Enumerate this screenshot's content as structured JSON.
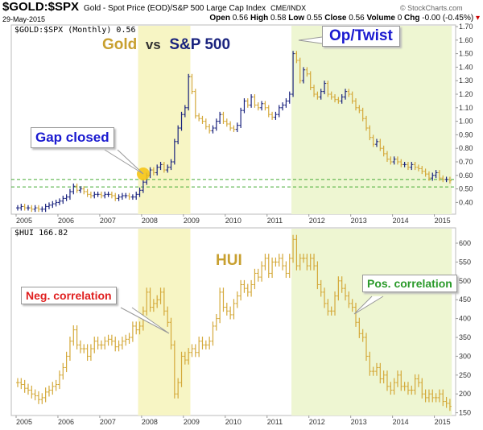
{
  "header": {
    "symbol": "$GOLD:$SPX",
    "description": "Gold - Spot Price (EOD)/S&P 500 Large Cap Index",
    "exchange": "CME/INDX",
    "brand": "© StockCharts.com",
    "date": "29-May-2015",
    "open_label": "Open",
    "open": "0.56",
    "high_label": "High",
    "high": "0.58",
    "low_label": "Low",
    "low": "0.55",
    "close_label": "Close",
    "close": "0.56",
    "volume_label": "Volume",
    "volume": "0",
    "chg_label": "Chg",
    "chg": "-0.00 (-0.45%)"
  },
  "colors": {
    "up": "#1a237e",
    "down": "#d4a93a",
    "shade1": "#f7f5c4",
    "shade2": "#eef6d2",
    "dash": "#44aa33",
    "neg": "#e02020",
    "pos": "#2a9a2a",
    "title_gold": "#c8a030",
    "title_spx": "#1a237e"
  },
  "chart_data": [
    {
      "type": "bar",
      "legend": "$GOLD:$SPX (Monthly) 0.56",
      "title_parts": [
        "Gold",
        "vs",
        "S&P 500"
      ],
      "start": "2005-01",
      "frequency": "monthly",
      "ylim": [
        0.33,
        1.72
      ],
      "yticks": [
        "1.70",
        "1.60",
        "1.50",
        "1.40",
        "1.30",
        "1.20",
        "1.10",
        "1.00",
        "0.90",
        "0.80",
        "0.70",
        "0.60",
        "0.50",
        "0.40"
      ],
      "xticks": [
        "2005",
        "2006",
        "2007",
        "2008",
        "2009",
        "2010",
        "2011",
        "2012",
        "2013",
        "2014",
        "2015"
      ],
      "closes": [
        0.36,
        0.37,
        0.36,
        0.36,
        0.35,
        0.36,
        0.35,
        0.35,
        0.37,
        0.38,
        0.39,
        0.4,
        0.41,
        0.43,
        0.44,
        0.48,
        0.52,
        0.49,
        0.5,
        0.48,
        0.46,
        0.45,
        0.46,
        0.46,
        0.45,
        0.46,
        0.46,
        0.45,
        0.43,
        0.44,
        0.45,
        0.45,
        0.44,
        0.44,
        0.46,
        0.49,
        0.55,
        0.6,
        0.64,
        0.62,
        0.66,
        0.68,
        0.64,
        0.66,
        0.7,
        0.85,
        0.95,
        1.05,
        1.1,
        1.33,
        1.22,
        1.04,
        1.02,
        1.0,
        0.96,
        0.93,
        0.95,
        1.0,
        1.05,
        1.0,
        0.98,
        0.95,
        0.94,
        0.97,
        1.08,
        1.15,
        1.12,
        1.18,
        1.12,
        1.1,
        1.13,
        1.1,
        1.05,
        1.03,
        1.05,
        1.1,
        1.12,
        1.15,
        1.2,
        1.5,
        1.45,
        1.3,
        1.38,
        1.35,
        1.25,
        1.2,
        1.18,
        1.22,
        1.28,
        1.2,
        1.18,
        1.16,
        1.15,
        1.18,
        1.22,
        1.2,
        1.15,
        1.1,
        1.08,
        1.02,
        0.95,
        0.88,
        0.83,
        0.85,
        0.8,
        0.76,
        0.72,
        0.7,
        0.72,
        0.7,
        0.68,
        0.68,
        0.66,
        0.68,
        0.66,
        0.65,
        0.63,
        0.61,
        0.58,
        0.6,
        0.62,
        0.58,
        0.57,
        0.57,
        0.56
      ],
      "hlines": [
        0.57,
        0.515
      ],
      "annotations": {
        "gap": "Gap closed",
        "optwist": "Op/Twist"
      }
    },
    {
      "type": "bar",
      "legend": "$HUI 166.82",
      "title": "HUI",
      "start": "2005-01",
      "frequency": "monthly",
      "ylim": [
        140,
        640
      ],
      "yticks": [
        "600",
        "550",
        "500",
        "450",
        "400",
        "350",
        "300",
        "250",
        "200",
        "150"
      ],
      "xticks": [
        "2005",
        "2006",
        "2007",
        "2008",
        "2009",
        "2010",
        "2011",
        "2012",
        "2013",
        "2014",
        "2015"
      ],
      "closes": [
        230,
        225,
        215,
        210,
        200,
        195,
        185,
        190,
        205,
        210,
        220,
        225,
        250,
        270,
        300,
        340,
        370,
        330,
        320,
        320,
        300,
        320,
        340,
        330,
        330,
        340,
        345,
        340,
        325,
        330,
        340,
        345,
        350,
        380,
        370,
        380,
        420,
        470,
        430,
        440,
        450,
        470,
        420,
        390,
        330,
        200,
        230,
        300,
        290,
        310,
        320,
        310,
        340,
        330,
        330,
        340,
        380,
        400,
        470,
        430,
        420,
        410,
        440,
        460,
        490,
        480,
        470,
        490,
        520,
        510,
        540,
        560,
        520,
        550,
        550,
        560,
        540,
        520,
        560,
        610,
        540,
        560,
        560,
        540,
        560,
        540,
        490,
        470,
        440,
        420,
        420,
        460,
        500,
        480,
        460,
        440,
        430,
        390,
        360,
        350,
        300,
        260,
        260,
        270,
        240,
        250,
        220,
        210,
        230,
        250,
        220,
        220,
        210,
        210,
        240,
        230,
        200,
        190,
        200,
        190,
        190,
        200,
        180,
        175,
        167
      ],
      "annotations": {
        "neg": "Neg. correlation",
        "pos": "Pos. correlation"
      }
    }
  ],
  "shaded_periods": [
    [
      "2007-12",
      "2009-02"
    ],
    [
      "2011-08",
      "2015-05"
    ]
  ]
}
